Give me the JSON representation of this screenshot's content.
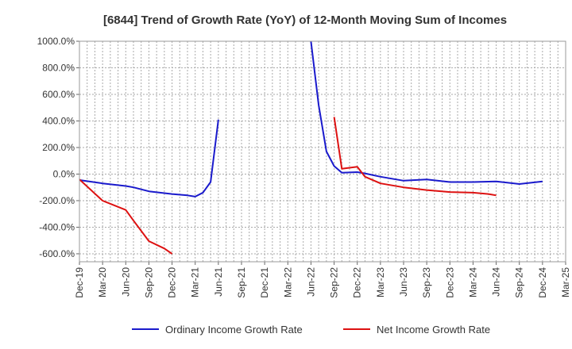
{
  "chart_data": {
    "type": "line",
    "title": "[6844]  Trend of Growth Rate (YoY) of 12-Month Moving Sum of Incomes",
    "xlabel": "",
    "ylabel": "",
    "ylim": [
      -660,
      1000
    ],
    "y_ticks": [
      1000,
      800,
      600,
      400,
      200,
      0,
      -200,
      -400,
      -600
    ],
    "y_tick_labels": [
      "1000.0%",
      "800.0%",
      "600.0%",
      "400.0%",
      "200.0%",
      "0.0%",
      "-200.0%",
      "-400.0%",
      "-600.0%"
    ],
    "x_tick_labels": [
      "Dec-19",
      "Mar-20",
      "Jun-20",
      "Sep-20",
      "Dec-20",
      "Mar-21",
      "Jun-21",
      "Sep-21",
      "Dec-21",
      "Mar-22",
      "Jun-22",
      "Sep-22",
      "Dec-22",
      "Mar-23",
      "Jun-23",
      "Sep-23",
      "Dec-23",
      "Mar-24",
      "Jun-24",
      "Sep-24",
      "Dec-24",
      "Mar-25"
    ],
    "grid": true,
    "legend_position": "bottom",
    "series": [
      {
        "name": "Ordinary Income Growth Rate",
        "color": "#1a1acc",
        "points": [
          [
            "Dec-19",
            -45
          ],
          [
            "Mar-20",
            -70
          ],
          [
            "Jun-20",
            -90
          ],
          [
            "Jul-20",
            -100
          ],
          [
            "Sep-20",
            -130
          ],
          [
            "Dec-20",
            -150
          ],
          [
            "Feb-21",
            -160
          ],
          [
            "Mar-21",
            -170
          ],
          [
            "Apr-21",
            -140
          ],
          [
            "May-21",
            -60
          ],
          [
            "Jun-21",
            410
          ],
          [
            "Jul-21",
            null
          ],
          [
            "Apr-22",
            null
          ],
          [
            "Jun-22",
            1000
          ],
          [
            "Jul-22",
            520
          ],
          [
            "Aug-22",
            170
          ],
          [
            "Sep-22",
            60
          ],
          [
            "Oct-22",
            10
          ],
          [
            "Dec-22",
            15
          ],
          [
            "Jan-23",
            5
          ],
          [
            "Mar-23",
            -20
          ],
          [
            "Jun-23",
            -50
          ],
          [
            "Sep-23",
            -40
          ],
          [
            "Dec-23",
            -60
          ],
          [
            "Mar-24",
            -60
          ],
          [
            "Jun-24",
            -55
          ],
          [
            "Sep-24",
            -75
          ],
          [
            "Dec-24",
            -55
          ]
        ]
      },
      {
        "name": "Net Income Growth Rate",
        "color": "#dd1111",
        "points": [
          [
            "Dec-19",
            -40
          ],
          [
            "Mar-20",
            -200
          ],
          [
            "Jun-20",
            -270
          ],
          [
            "Jul-20",
            -350
          ],
          [
            "Sep-20",
            -505
          ],
          [
            "Nov-20",
            -560
          ],
          [
            "Dec-20",
            -600
          ],
          [
            "Jan-21",
            null
          ],
          [
            "Aug-22",
            null
          ],
          [
            "Sep-22",
            430
          ],
          [
            "Oct-22",
            40
          ],
          [
            "Dec-22",
            55
          ],
          [
            "Jan-23",
            -20
          ],
          [
            "Mar-23",
            -70
          ],
          [
            "Jun-23",
            -100
          ],
          [
            "Sep-23",
            -120
          ],
          [
            "Dec-23",
            -135
          ],
          [
            "Mar-24",
            -140
          ],
          [
            "May-24",
            -150
          ],
          [
            "Jun-24",
            -160
          ]
        ]
      }
    ]
  }
}
